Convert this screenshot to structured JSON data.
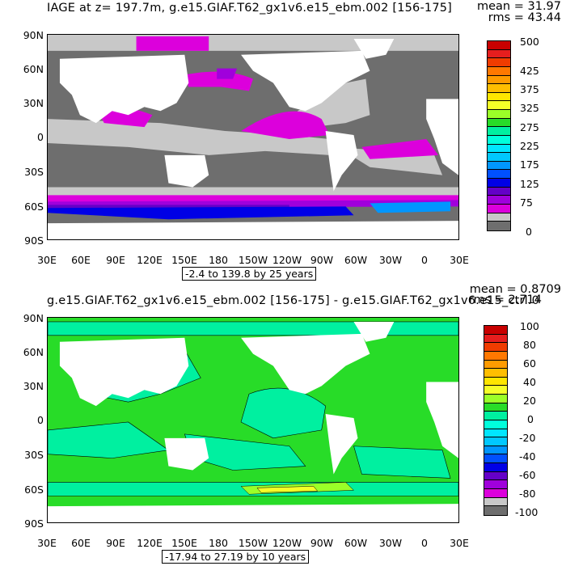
{
  "panels": [
    {
      "title": "IAGE at z= 197.7m, g.e15.GIAF.T62_gx1v6.e15_ebm.002 [156-175]",
      "mean_text": "mean = 31.97",
      "rms_text": "rms = 43.44",
      "range_text": "-2.4 to 139.8 by 25 years",
      "lat_labels": [
        "90N",
        "60N",
        "30N",
        "0",
        "30S",
        "60S",
        "90S"
      ],
      "lon_labels": [
        "30E",
        "60E",
        "90E",
        "120E",
        "150E",
        "180",
        "150W",
        "120W",
        "90W",
        "60W",
        "30W",
        "0",
        "30E"
      ],
      "colorbar": {
        "labels": [
          "500",
          "425",
          "375",
          "325",
          "275",
          "225",
          "175",
          "125",
          "75",
          "0"
        ],
        "colors": [
          "#c80000",
          "#e61e1e",
          "#f03c00",
          "#ff7800",
          "#ff9b00",
          "#ffbe00",
          "#ffe600",
          "#f5ff28",
          "#9bff28",
          "#28dc28",
          "#00f0a0",
          "#00ffdc",
          "#00e6ff",
          "#00c8ff",
          "#0096ff",
          "#0050ff",
          "#0000e6",
          "#6400c8",
          "#a000dc",
          "#dc00dc",
          "#c8c8c8",
          "#6e6e6e"
        ]
      }
    },
    {
      "title": "g.e15.GIAF.T62_gx1v6.e15_ebm.002 [156-175] - g.e15.GIAF.T62_gx1v6.e15_ctrl.0",
      "mean_text": "mean = 0.8709",
      "rms_text": "rms = 2.714",
      "range_text": "-17.94 to 27.19 by 10 years",
      "lat_labels": [
        "90N",
        "60N",
        "30N",
        "0",
        "30S",
        "60S",
        "90S"
      ],
      "lon_labels": [
        "30E",
        "60E",
        "90E",
        "120E",
        "150E",
        "180",
        "150W",
        "120W",
        "90W",
        "60W",
        "30W",
        "0",
        "30E"
      ],
      "colorbar": {
        "labels": [
          "100",
          "80",
          "60",
          "40",
          "20",
          "0",
          "-20",
          "-40",
          "-60",
          "-80",
          "-100"
        ],
        "colors": [
          "#c80000",
          "#e61e1e",
          "#f03c00",
          "#ff7800",
          "#ff9b00",
          "#ffbe00",
          "#ffe600",
          "#f5ff28",
          "#9bff28",
          "#28dc28",
          "#00f0a0",
          "#00ffdc",
          "#00e6ff",
          "#00c8ff",
          "#0096ff",
          "#0050ff",
          "#0000e6",
          "#6400c8",
          "#a000dc",
          "#dc00dc",
          "#c8c8c8",
          "#6e6e6e"
        ]
      }
    }
  ],
  "colors": {
    "land": "#ffffff",
    "p1_dark": "#6e6e6e",
    "p1_light": "#c8c8c8",
    "p1_magenta": "#dc00dc",
    "p1_purple": "#a000dc",
    "p1_violet": "#6400c8",
    "p1_blue": "#0000e6",
    "p1_ltblue": "#0096ff",
    "p2_green": "#28dc28",
    "p2_cyan": "#00f0a0",
    "p2_lime": "#9bff28",
    "p2_yellow": "#f5ff28"
  }
}
